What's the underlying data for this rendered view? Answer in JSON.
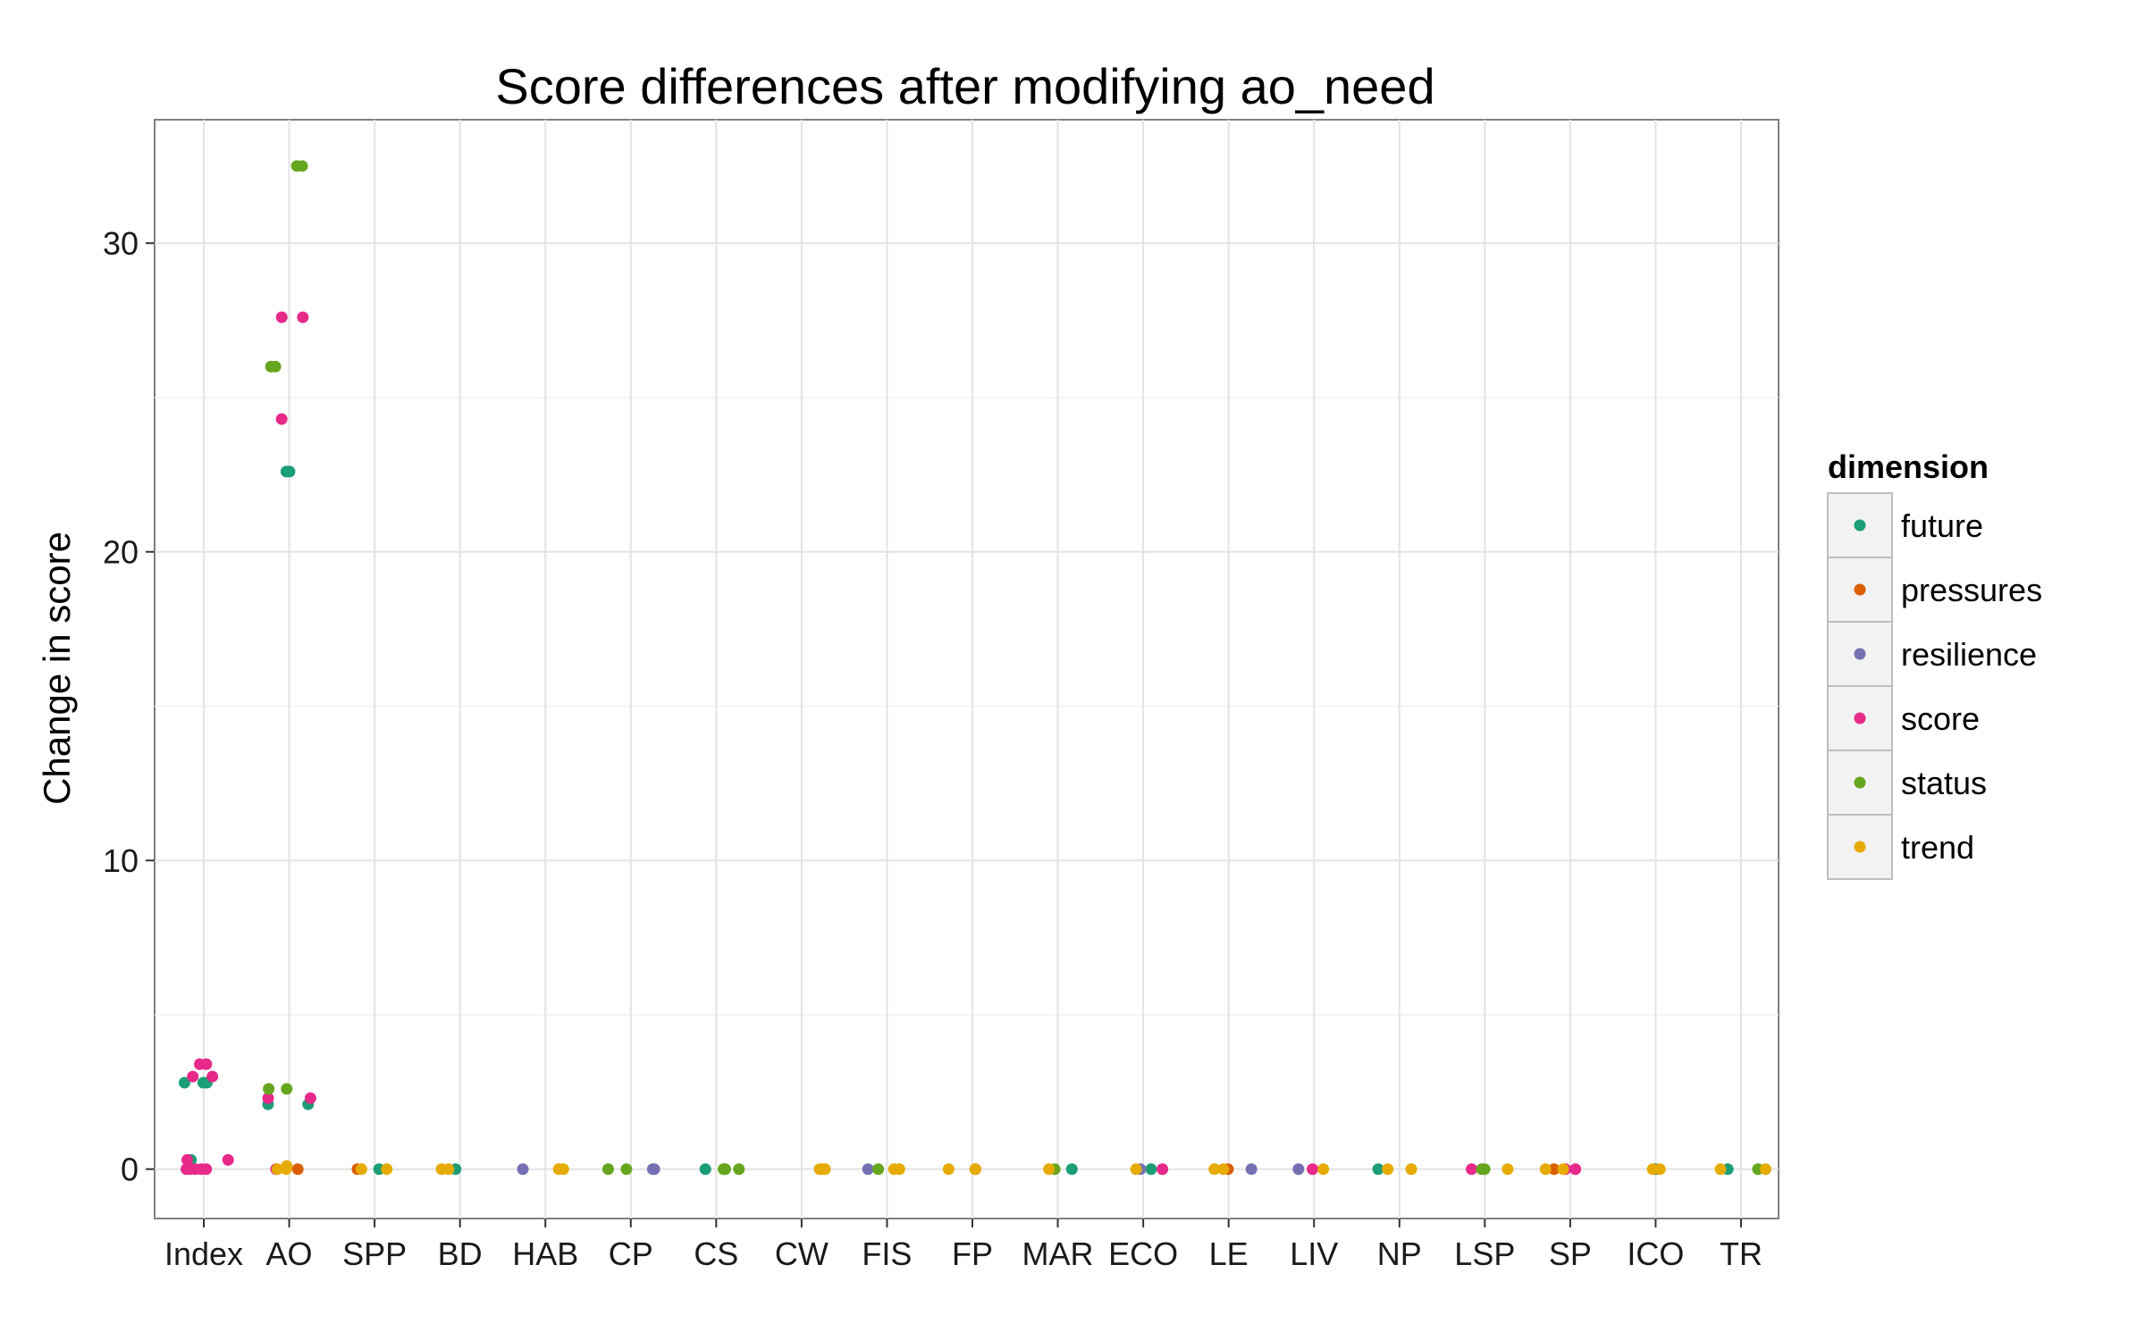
{
  "chart_data": {
    "type": "scatter",
    "title": "Score differences after modifying ao_need",
    "xlabel": "",
    "ylabel": "Change in score",
    "ylim": [
      -1.6,
      34
    ],
    "yticks": [
      0,
      10,
      20,
      30
    ],
    "grid": true,
    "legend_position": "right",
    "legend_title": "dimension",
    "categories": [
      "Index",
      "AO",
      "SPP",
      "BD",
      "HAB",
      "CP",
      "CS",
      "CW",
      "FIS",
      "FP",
      "MAR",
      "ECO",
      "LE",
      "LIV",
      "NP",
      "LSP",
      "SP",
      "ICO",
      "TR"
    ],
    "series": [
      {
        "name": "future",
        "color": "#1b9e77",
        "points": [
          {
            "x": "Index",
            "y": 2.8
          },
          {
            "x": "Index",
            "y": 2.8
          },
          {
            "x": "Index",
            "y": 2.8
          },
          {
            "x": "Index",
            "y": 0.3
          },
          {
            "x": "AO",
            "y": 22.6
          },
          {
            "x": "AO",
            "y": 22.6
          },
          {
            "x": "AO",
            "y": 2.1
          },
          {
            "x": "AO",
            "y": 2.1
          },
          {
            "x": "SPP",
            "y": 0
          },
          {
            "x": "BD",
            "y": 0
          },
          {
            "x": "CS",
            "y": 0
          },
          {
            "x": "MAR",
            "y": 0
          },
          {
            "x": "ECO",
            "y": 0
          },
          {
            "x": "NP",
            "y": 0
          },
          {
            "x": "ICO",
            "y": 0
          },
          {
            "x": "TR",
            "y": 0
          }
        ]
      },
      {
        "name": "pressures",
        "color": "#d95f02",
        "points": [
          {
            "x": "AO",
            "y": 0
          },
          {
            "x": "SPP",
            "y": 0
          },
          {
            "x": "FP",
            "y": 0
          },
          {
            "x": "LE",
            "y": 0
          },
          {
            "x": "SP",
            "y": 0
          }
        ]
      },
      {
        "name": "resilience",
        "color": "#7570b3",
        "points": [
          {
            "x": "HAB",
            "y": 0
          },
          {
            "x": "CP",
            "y": 0
          },
          {
            "x": "CP",
            "y": 0
          },
          {
            "x": "FIS",
            "y": 0
          },
          {
            "x": "ECO",
            "y": 0
          },
          {
            "x": "LE",
            "y": 0
          },
          {
            "x": "LIV",
            "y": 0
          }
        ]
      },
      {
        "name": "score",
        "color": "#e7298a",
        "points": [
          {
            "x": "Index",
            "y": 3.4
          },
          {
            "x": "Index",
            "y": 3.4
          },
          {
            "x": "Index",
            "y": 3.0
          },
          {
            "x": "Index",
            "y": 3.0
          },
          {
            "x": "Index",
            "y": 0.3
          },
          {
            "x": "Index",
            "y": 0.3
          },
          {
            "x": "Index",
            "y": 0
          },
          {
            "x": "Index",
            "y": 0
          },
          {
            "x": "Index",
            "y": 0
          },
          {
            "x": "Index",
            "y": 0
          },
          {
            "x": "Index",
            "y": 0
          },
          {
            "x": "AO",
            "y": 27.6
          },
          {
            "x": "AO",
            "y": 27.6
          },
          {
            "x": "AO",
            "y": 24.3
          },
          {
            "x": "AO",
            "y": 2.3
          },
          {
            "x": "AO",
            "y": 2.3
          },
          {
            "x": "AO",
            "y": 0
          },
          {
            "x": "ECO",
            "y": 0
          },
          {
            "x": "LIV",
            "y": 0
          },
          {
            "x": "LSP",
            "y": 0
          },
          {
            "x": "SP",
            "y": 0
          },
          {
            "x": "SP",
            "y": 0
          }
        ]
      },
      {
        "name": "status",
        "color": "#66a61e",
        "points": [
          {
            "x": "AO",
            "y": 32.5
          },
          {
            "x": "AO",
            "y": 32.5
          },
          {
            "x": "AO",
            "y": 26.0
          },
          {
            "x": "AO",
            "y": 26.0
          },
          {
            "x": "AO",
            "y": 2.6
          },
          {
            "x": "AO",
            "y": 2.6
          },
          {
            "x": "CP",
            "y": 0
          },
          {
            "x": "CP",
            "y": 0
          },
          {
            "x": "CS",
            "y": 0
          },
          {
            "x": "CS",
            "y": 0
          },
          {
            "x": "CS",
            "y": 0
          },
          {
            "x": "FIS",
            "y": 0
          },
          {
            "x": "MAR",
            "y": 0
          },
          {
            "x": "LSP",
            "y": 0
          },
          {
            "x": "LSP",
            "y": 0
          },
          {
            "x": "TR",
            "y": 0
          }
        ]
      },
      {
        "name": "trend",
        "color": "#e6ab02",
        "points": [
          {
            "x": "AO",
            "y": 0.1
          },
          {
            "x": "AO",
            "y": 0
          },
          {
            "x": "AO",
            "y": 0
          },
          {
            "x": "SPP",
            "y": 0
          },
          {
            "x": "SPP",
            "y": 0
          },
          {
            "x": "BD",
            "y": 0
          },
          {
            "x": "BD",
            "y": 0
          },
          {
            "x": "HAB",
            "y": 0
          },
          {
            "x": "HAB",
            "y": 0
          },
          {
            "x": "CW",
            "y": 0
          },
          {
            "x": "CW",
            "y": 0
          },
          {
            "x": "CW",
            "y": 0
          },
          {
            "x": "FIS",
            "y": 0
          },
          {
            "x": "FIS",
            "y": 0
          },
          {
            "x": "FP",
            "y": 0
          },
          {
            "x": "FP",
            "y": 0
          },
          {
            "x": "MAR",
            "y": 0
          },
          {
            "x": "ECO",
            "y": 0
          },
          {
            "x": "LE",
            "y": 0
          },
          {
            "x": "LE",
            "y": 0
          },
          {
            "x": "LIV",
            "y": 0
          },
          {
            "x": "NP",
            "y": 0
          },
          {
            "x": "NP",
            "y": 0
          },
          {
            "x": "LSP",
            "y": 0
          },
          {
            "x": "SP",
            "y": 0
          },
          {
            "x": "SP",
            "y": 0
          },
          {
            "x": "ICO",
            "y": 0
          },
          {
            "x": "ICO",
            "y": 0
          },
          {
            "x": "TR",
            "y": 0
          },
          {
            "x": "TR",
            "y": 0
          }
        ]
      }
    ]
  }
}
